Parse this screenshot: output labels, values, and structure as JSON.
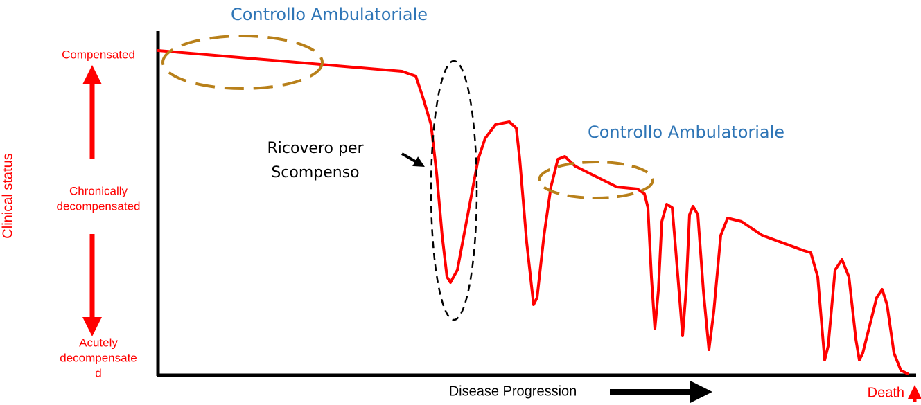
{
  "annotations": {
    "top": "Controllo Ambulatoriale",
    "middle": "Controllo Ambulatoriale",
    "hospitalization": [
      "Ricovero per",
      "Scompenso"
    ]
  },
  "y_axis": {
    "title": "Clinical status",
    "levels": [
      [
        "Compensated"
      ],
      [
        "Chronically",
        "decompensated"
      ],
      [
        "Acutely",
        "decompensate",
        "d"
      ]
    ]
  },
  "x_axis": {
    "title": "Disease Progression",
    "end_label": "Death"
  }
}
